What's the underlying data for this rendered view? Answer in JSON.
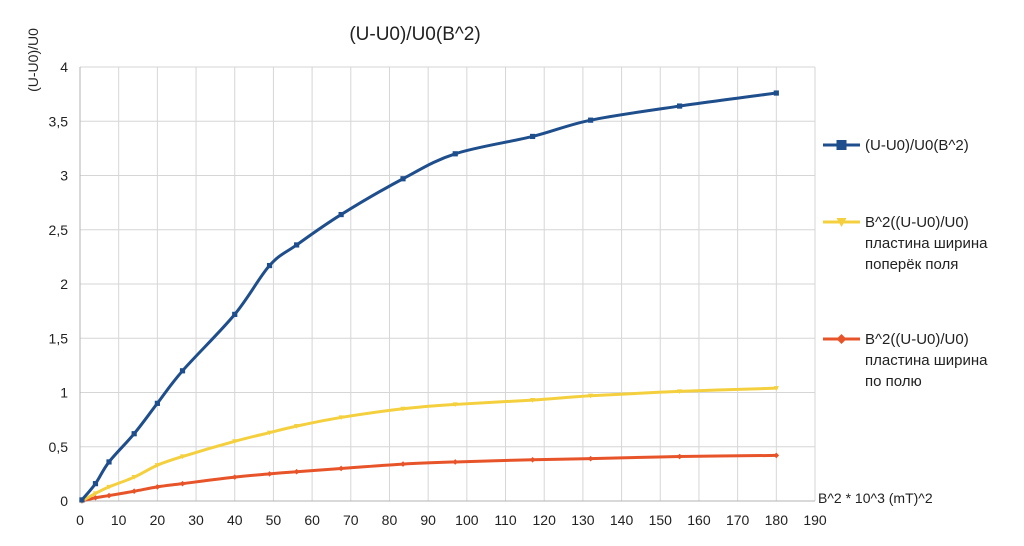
{
  "chart_data": {
    "type": "line",
    "title": "(U-U0)/U0(B^2)",
    "xlabel": "B^2 * 10^3 (mT)^2",
    "ylabel": "(U-U0)/U0",
    "xlim": [
      0,
      190
    ],
    "ylim": [
      0,
      4
    ],
    "x_ticks": [
      "0",
      "10",
      "20",
      "30",
      "40",
      "50",
      "60",
      "70",
      "80",
      "90",
      "100",
      "110",
      "120",
      "130",
      "140",
      "150",
      "160",
      "170",
      "180",
      "190"
    ],
    "y_ticks": [
      "0",
      "0,5",
      "1",
      "1,5",
      "2",
      "2,5",
      "3",
      "3,5",
      "4"
    ],
    "grid": true,
    "legend_position": "right",
    "series": [
      {
        "name": "(U-U0)/U0(B^2)",
        "legend_lines": [
          "(U-U0)/U0(B^2)"
        ],
        "color": "#1f4e8c",
        "marker": "square",
        "x": [
          0.5,
          4,
          7.5,
          14,
          20,
          26.5,
          40,
          49,
          56,
          67.5,
          83.5,
          97,
          117,
          132,
          155,
          180
        ],
        "y": [
          0.01,
          0.16,
          0.36,
          0.62,
          0.9,
          1.2,
          1.72,
          2.17,
          2.36,
          2.64,
          2.97,
          3.2,
          3.36,
          3.51,
          3.64,
          3.76
        ]
      },
      {
        "name": "B^2((U-U0)/U0) пластина ширина поперёк поля",
        "legend_lines": [
          "B^2((U-U0)/U0)",
          "пластина ширина",
          "поперёк поля"
        ],
        "color": "#f4d03f",
        "marker": "triangle",
        "x": [
          0.5,
          4,
          7.5,
          14,
          20,
          26.5,
          40,
          49,
          56,
          67.5,
          83.5,
          97,
          117,
          132,
          155,
          180
        ],
        "y": [
          0.0,
          0.07,
          0.13,
          0.22,
          0.33,
          0.41,
          0.55,
          0.63,
          0.69,
          0.77,
          0.85,
          0.89,
          0.93,
          0.97,
          1.01,
          1.04
        ]
      },
      {
        "name": "B^2((U-U0)/U0) пластина ширина по полю",
        "legend_lines": [
          "B^2((U-U0)/U0)",
          "пластина ширина",
          "по полю"
        ],
        "color": "#e8542a",
        "marker": "diamond",
        "x": [
          0.5,
          4,
          7.5,
          14,
          20,
          26.5,
          40,
          49,
          56,
          67.5,
          83.5,
          97,
          117,
          132,
          155,
          180
        ],
        "y": [
          0.0,
          0.03,
          0.05,
          0.09,
          0.13,
          0.16,
          0.22,
          0.25,
          0.27,
          0.3,
          0.34,
          0.36,
          0.38,
          0.39,
          0.41,
          0.42
        ]
      }
    ]
  }
}
